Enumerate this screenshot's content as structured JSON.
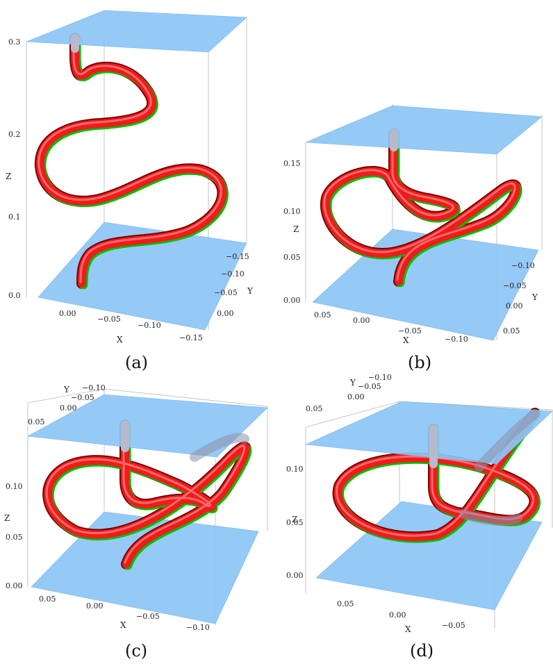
{
  "figure": {
    "panels": [
      {
        "id": "a",
        "caption": "(a)",
        "z_label": "Z",
        "x_label": "X",
        "y_label": "Y",
        "z_ticks": [
          "0.0",
          "0.1",
          "0.2",
          "0.3"
        ],
        "x_ticks": [
          "0.00",
          "−0.05",
          "−0.10",
          "−0.15"
        ],
        "y_ticks": [
          "−0.15",
          "−0.10",
          "−0.05",
          "0.00"
        ]
      },
      {
        "id": "b",
        "caption": "(b)",
        "z_label": "Z",
        "x_label": "X",
        "y_label": "Y",
        "z_ticks": [
          "0.00",
          "0.05",
          "0.10",
          "0.15"
        ],
        "x_ticks": [
          "0.05",
          "0.00",
          "−0.05",
          "−0.10"
        ],
        "y_ticks": [
          "−0.10",
          "−0.05",
          "0.00",
          "0.05"
        ]
      },
      {
        "id": "c",
        "caption": "(c)",
        "z_label": "Z",
        "x_label": "X",
        "y_label": "Y",
        "z_ticks": [
          "0.00",
          "0.05",
          "0.10"
        ],
        "x_ticks": [
          "0.05",
          "0.00",
          "−0.05",
          "−0.10"
        ],
        "y_ticks": [
          "−0.10",
          "−0.05",
          "0.00",
          "0.05"
        ]
      },
      {
        "id": "d",
        "caption": "(d)",
        "z_label": "Z",
        "x_label": "X",
        "y_label": "Y",
        "z_ticks": [
          "0.00",
          "0.05",
          "0.10"
        ],
        "x_ticks": [
          "0.05",
          "0.00",
          "−0.05"
        ],
        "y_ticks": [
          "−0.10",
          "−0.05",
          "0.00",
          "0.05"
        ]
      }
    ],
    "colors": {
      "plane": "#8cc6f5",
      "tube_primary": "#ee1c1c",
      "tube_secondary": "#00c000",
      "box_edges": "#b8b8b8"
    }
  }
}
